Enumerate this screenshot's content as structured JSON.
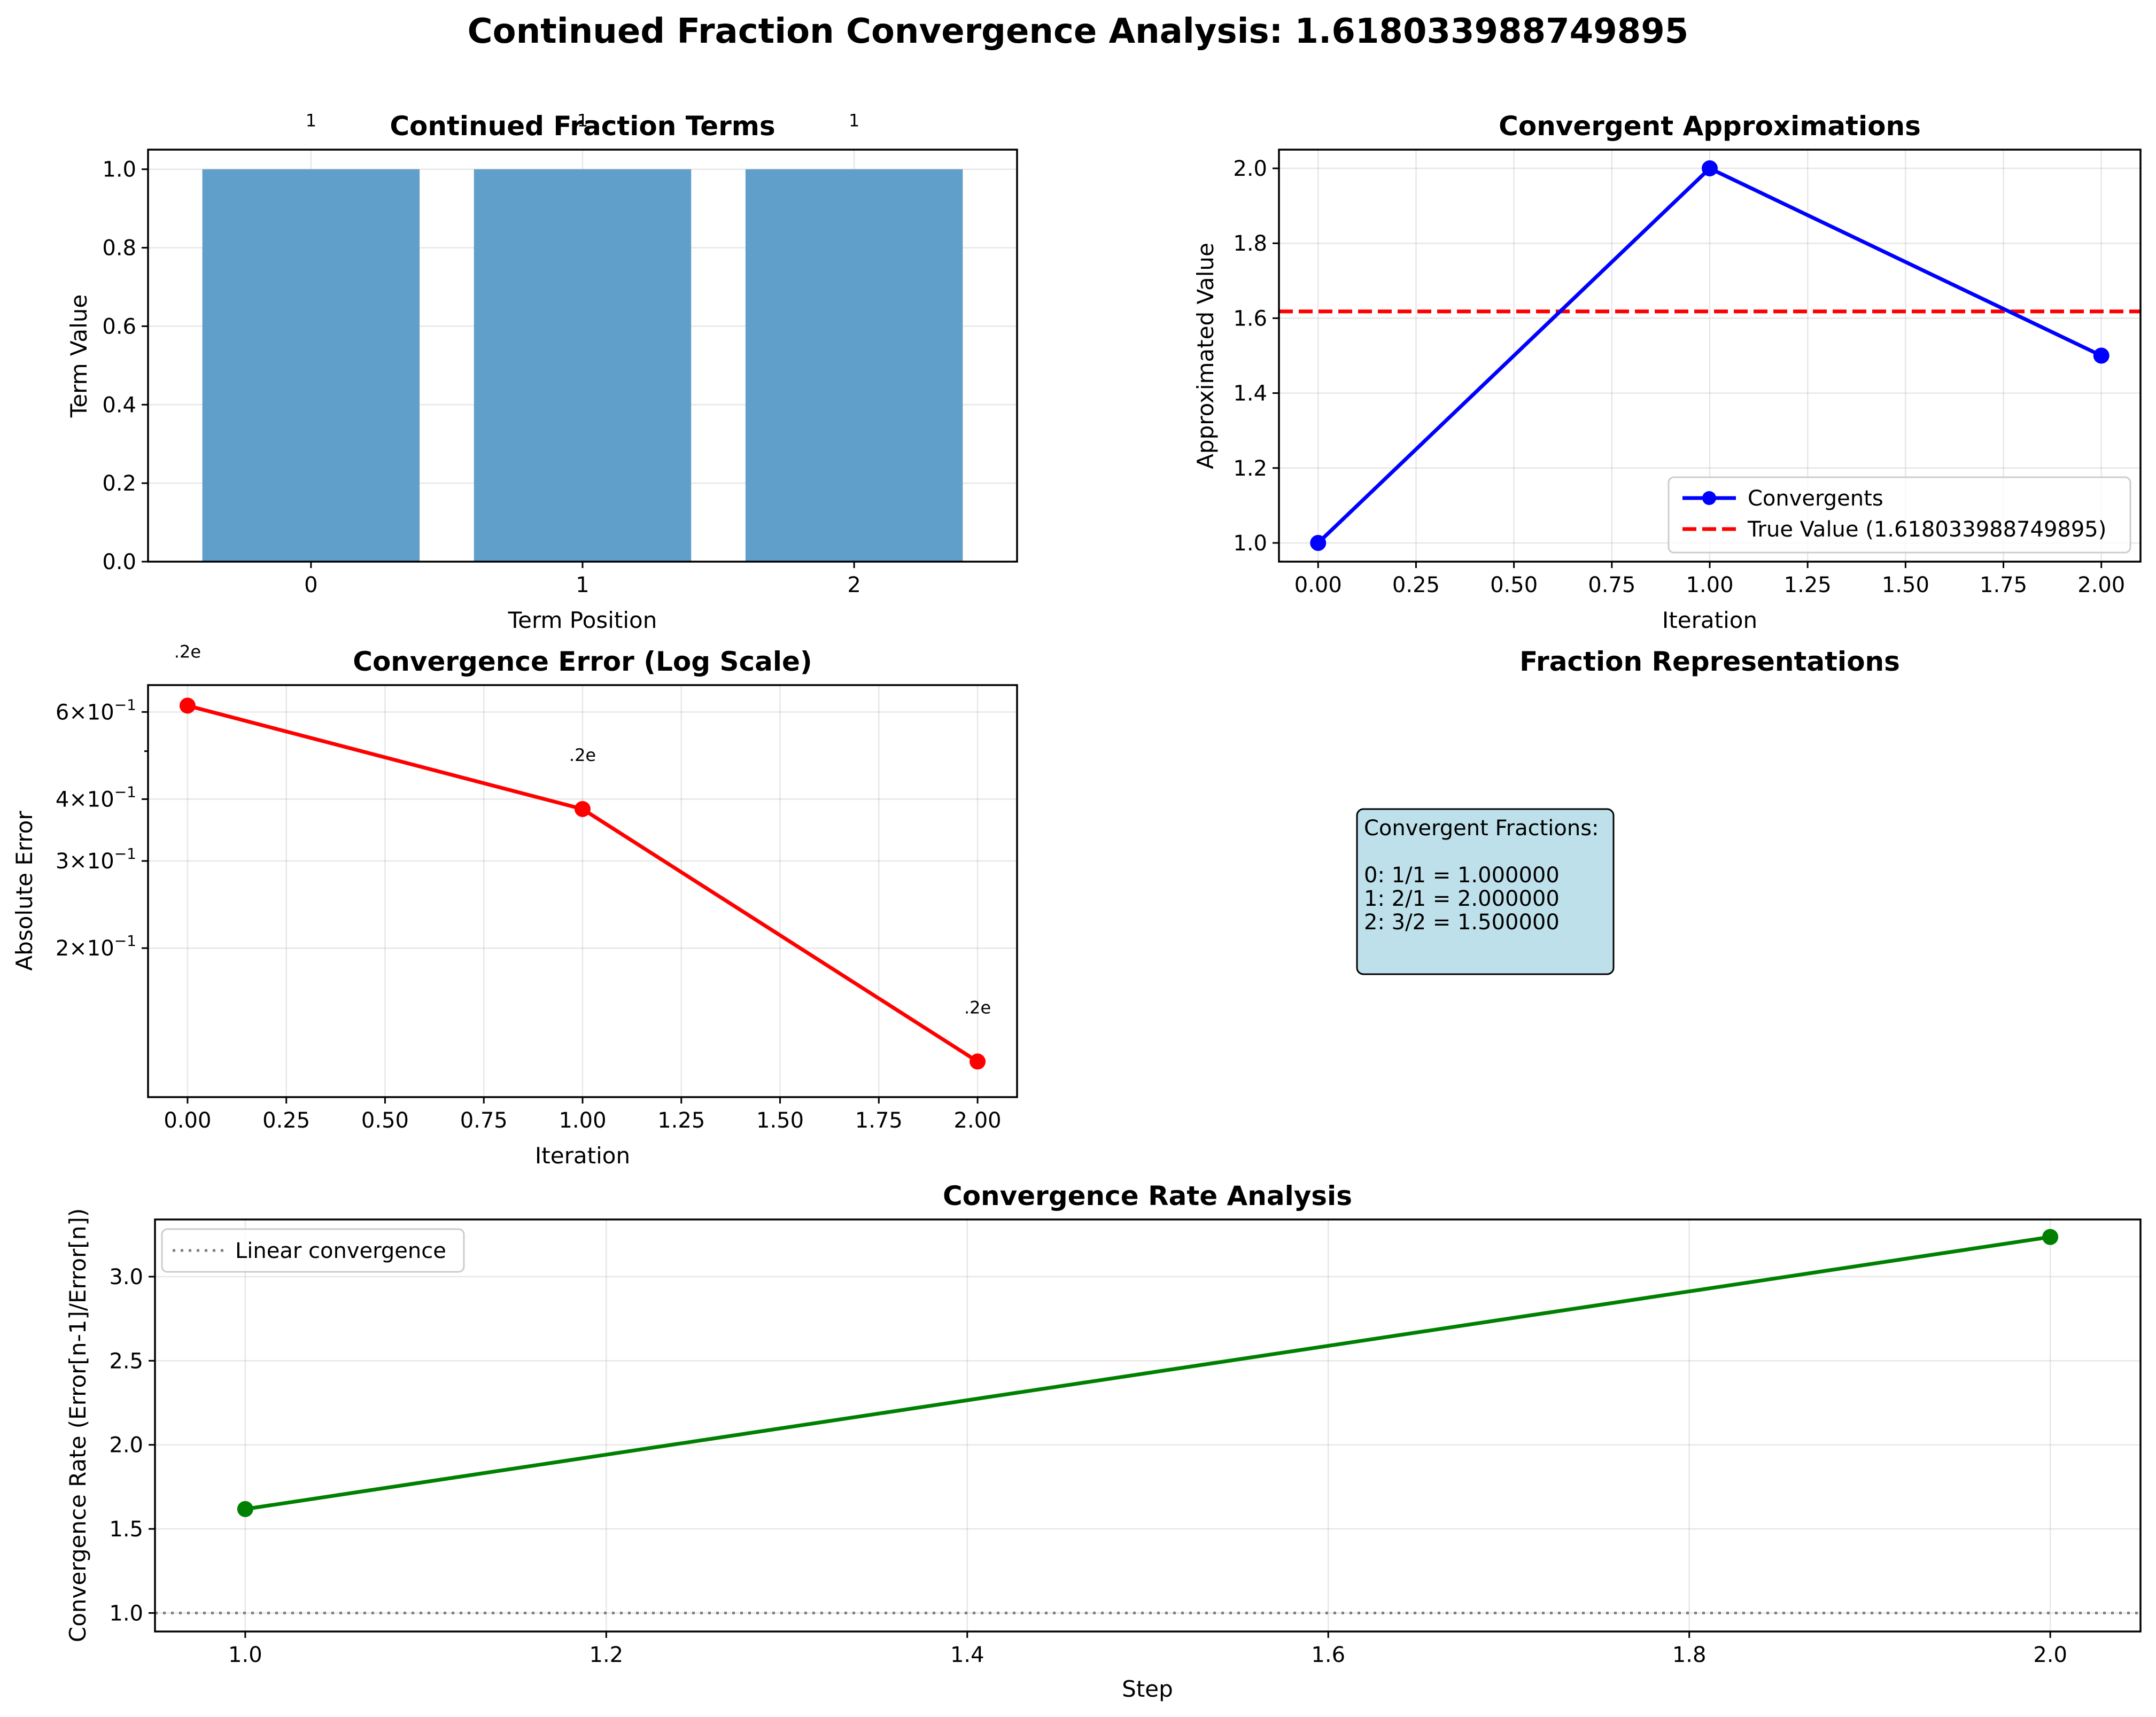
{
  "figure_title": "Continued Fraction Convergence Analysis: 1.618033988749895",
  "colors": {
    "bar": "#5f9fca",
    "convergent": "#0000ff",
    "true_value": "#ff0000",
    "error": "#ff0000",
    "rate": "#008000",
    "linear": "#808080",
    "infobox": "#add8e6"
  },
  "chart_data": [
    {
      "type": "bar",
      "title": "Continued Fraction Terms",
      "xlabel": "Term Position",
      "ylabel": "Term Value",
      "categories": [
        "0",
        "1",
        "2"
      ],
      "values": [
        1,
        1,
        1
      ],
      "data_labels": [
        "1",
        "1",
        "1"
      ],
      "ylim": [
        0,
        1.05
      ],
      "yticks": [
        "0.0",
        "0.2",
        "0.4",
        "0.6",
        "0.8",
        "1.0"
      ],
      "grid": true
    },
    {
      "type": "line",
      "title": "Convergent Approximations",
      "xlabel": "Iteration",
      "ylabel": "Approximated Value",
      "x": [
        0,
        1,
        2
      ],
      "series": [
        {
          "name": "Convergents",
          "values": [
            1.0,
            2.0,
            1.5
          ]
        }
      ],
      "reference_line": {
        "name": "True Value (1.618033988749895)",
        "y": 1.618033988749895
      },
      "xlim": [
        -0.1,
        2.1
      ],
      "ylim": [
        0.95,
        2.05
      ],
      "xticks": [
        "0.00",
        "0.25",
        "0.50",
        "0.75",
        "1.00",
        "1.25",
        "1.50",
        "1.75",
        "2.00"
      ],
      "yticks": [
        "1.0",
        "1.2",
        "1.4",
        "1.6",
        "1.8",
        "2.0"
      ],
      "legend": "lower-right",
      "grid": true
    },
    {
      "type": "line",
      "title": "Convergence Error (Log Scale)",
      "xlabel": "Iteration",
      "ylabel": "Absolute Error",
      "yscale": "log",
      "x": [
        0,
        1,
        2
      ],
      "series": [
        {
          "values": [
            0.618,
            0.382,
            0.118
          ]
        }
      ],
      "data_labels": [
        ".2e",
        ".2e",
        ".2e"
      ],
      "ylim": [
        0.1,
        0.68
      ],
      "xlim": [
        -0.1,
        2.1
      ],
      "xticks": [
        "0.00",
        "0.25",
        "0.50",
        "0.75",
        "1.00",
        "1.25",
        "1.50",
        "1.75",
        "2.00"
      ],
      "yticks": [
        {
          "value": 0.6,
          "mantissa": "6",
          "base": "10",
          "exp": "−1"
        },
        {
          "value": 0.4,
          "mantissa": "4",
          "base": "10",
          "exp": "−1"
        },
        {
          "value": 0.3,
          "mantissa": "3",
          "base": "10",
          "exp": "−1"
        },
        {
          "value": 0.2,
          "mantissa": "2",
          "base": "10",
          "exp": "−1"
        }
      ],
      "grid": true
    },
    {
      "type": "line",
      "title": "Convergence Rate Analysis",
      "xlabel": "Step",
      "ylabel": "Convergence Rate (Error[n-1]/Error[n])",
      "x": [
        1,
        2
      ],
      "series": [
        {
          "values": [
            1.618,
            3.236
          ]
        }
      ],
      "reference_line": {
        "name": "Linear convergence",
        "y": 1.0
      },
      "xlim": [
        0.95,
        2.05
      ],
      "ylim": [
        0.89,
        3.34
      ],
      "xticks": [
        "1.0",
        "1.2",
        "1.4",
        "1.6",
        "1.8",
        "2.0"
      ],
      "yticks": [
        "1.0",
        "1.5",
        "2.0",
        "2.5",
        "3.0"
      ],
      "legend": "upper-left",
      "grid": true
    }
  ],
  "fraction_panel": {
    "title": "Fraction Representations",
    "lines": [
      "Convergent Fractions:",
      "",
      "0: 1/1 = 1.000000",
      "1: 2/1 = 2.000000",
      "2: 3/2 = 1.500000"
    ]
  }
}
